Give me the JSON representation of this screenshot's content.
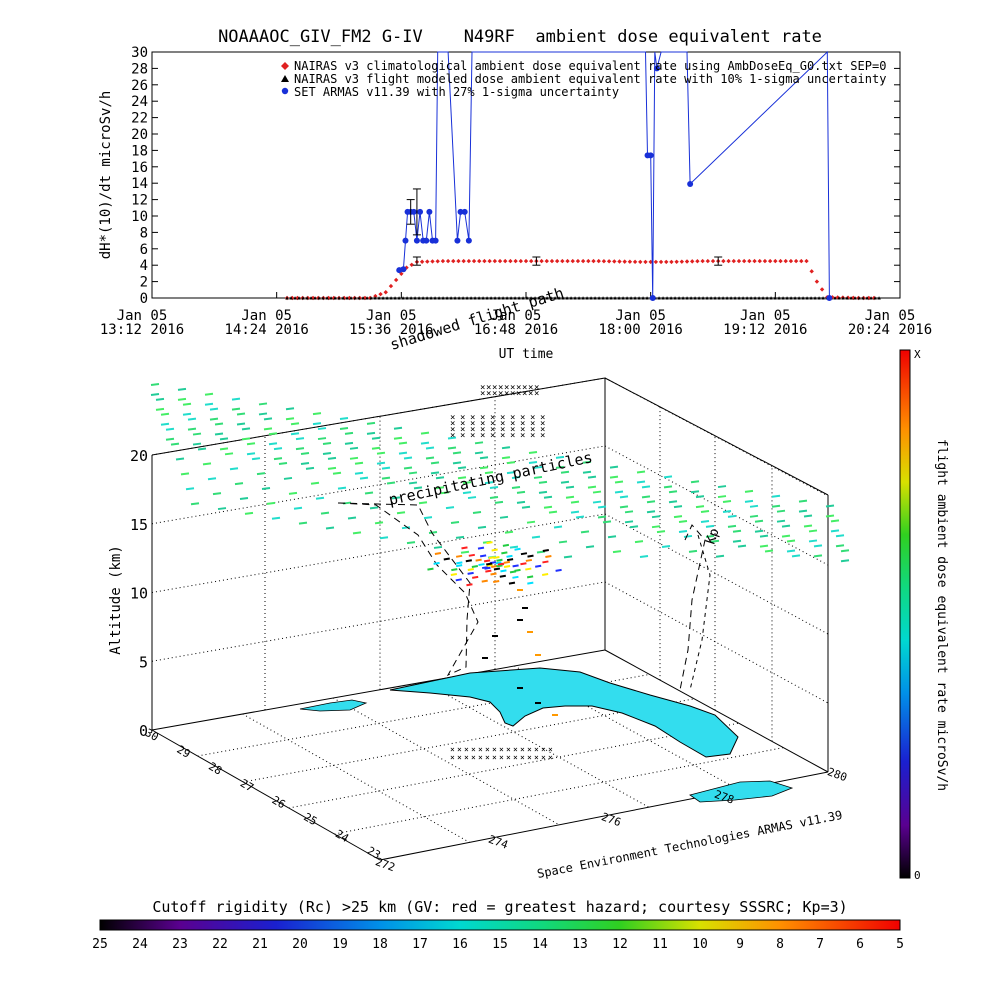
{
  "chart_data": [
    {
      "type": "line",
      "title": "NOAAAOC_GIV_FM2 G-IV    N49RF  ambient dose equivalent rate",
      "ylabel": "dH*(10)/dt microSv/h",
      "xlabel": "UT time",
      "ylim": [
        0,
        30
      ],
      "yticks": [
        "0",
        "2",
        "4",
        "6",
        "8",
        "10",
        "12",
        "14",
        "16",
        "18",
        "20",
        "22",
        "24",
        "26",
        "28",
        "30"
      ],
      "xlim_hours": [
        13.2,
        20.4
      ],
      "xticks": [
        {
          "h": 13.2,
          "d": "Jan 05",
          "t": "13:12 2016"
        },
        {
          "h": 14.4,
          "d": "Jan 05",
          "t": "14:24 2016"
        },
        {
          "h": 15.6,
          "d": "Jan 05",
          "t": "15:36 2016"
        },
        {
          "h": 16.8,
          "d": "Jan 05",
          "t": "16:48 2016"
        },
        {
          "h": 18.0,
          "d": "Jan 05",
          "t": "18:00 2016"
        },
        {
          "h": 19.2,
          "d": "Jan 05",
          "t": "19:12 2016"
        },
        {
          "h": 20.4,
          "d": "Jan 05",
          "t": "20:24 2016"
        }
      ],
      "legend_position": "top-right",
      "series": [
        {
          "name": "NAIRAS v3 climatological ambient dose equivalent rate using AmbDoseEq_G0.txt SEP=0",
          "color": "#e02020",
          "marker": "diamond",
          "points": [
            [
              14.5,
              0
            ],
            [
              15.0,
              0
            ],
            [
              15.3,
              0
            ],
            [
              15.45,
              0.7
            ],
            [
              15.55,
              2.2
            ],
            [
              15.65,
              3.7
            ],
            [
              15.75,
              4.4
            ],
            [
              16.0,
              4.5
            ],
            [
              16.5,
              4.5
            ],
            [
              17.0,
              4.5
            ],
            [
              17.5,
              4.5
            ],
            [
              17.9,
              4.4
            ],
            [
              18.2,
              4.4
            ],
            [
              18.5,
              4.5
            ],
            [
              18.9,
              4.5
            ],
            [
              19.3,
              4.5
            ],
            [
              19.5,
              4.5
            ],
            [
              19.6,
              2.0
            ],
            [
              19.7,
              0.1
            ],
            [
              20.0,
              0
            ],
            [
              20.2,
              0
            ]
          ]
        },
        {
          "name": "NAIRAS v3 flight modeled dose ambient equivalent rate with 10% 1-sigma uncertainty",
          "color": "#000000",
          "marker": "triangle",
          "points": [
            [
              14.5,
              0
            ],
            [
              16.0,
              0
            ],
            [
              17.5,
              0
            ],
            [
              19.0,
              0
            ],
            [
              20.2,
              0
            ]
          ],
          "errorbars": [
            [
              15.75,
              4.5,
              0.5
            ],
            [
              16.9,
              4.5,
              0.5
            ],
            [
              18.65,
              4.5,
              0.5
            ]
          ]
        },
        {
          "name": "SET ARMAS v11.39 with 27% 1-sigma uncertainty",
          "color": "#1830d8",
          "marker": "circle",
          "points": [
            [
              15.58,
              3.4
            ],
            [
              15.62,
              3.5
            ],
            [
              15.64,
              7
            ],
            [
              15.66,
              10.5
            ],
            [
              15.69,
              10.5
            ],
            [
              15.72,
              10.5
            ],
            [
              15.75,
              7
            ],
            [
              15.78,
              10.5
            ],
            [
              15.81,
              7
            ],
            [
              15.84,
              7
            ],
            [
              15.87,
              10.5
            ],
            [
              15.9,
              7
            ],
            [
              15.93,
              7
            ],
            [
              15.95,
              30
            ],
            [
              16.05,
              30
            ],
            [
              16.14,
              7
            ],
            [
              16.17,
              10.5
            ],
            [
              16.21,
              10.5
            ],
            [
              16.25,
              7
            ],
            [
              16.28,
              30
            ],
            [
              17.95,
              30
            ],
            [
              17.97,
              17.4
            ],
            [
              18.0,
              17.4
            ],
            [
              18.02,
              0
            ],
            [
              18.04,
              30
            ],
            [
              18.06,
              28
            ],
            [
              18.1,
              30
            ],
            [
              18.35,
              30
            ],
            [
              18.38,
              13.9
            ],
            [
              19.7,
              30
            ],
            [
              19.72,
              0
            ]
          ],
          "errorbars": [
            [
              15.75,
              10.5,
              2.8
            ],
            [
              15.69,
              10.5,
              1.5
            ]
          ]
        }
      ]
    },
    {
      "type": "scatter",
      "title": "",
      "subtitle": "",
      "ylabel": "Altitude (km)",
      "zticks": [
        "0",
        "5",
        "10",
        "15",
        "20"
      ],
      "lat_ticks": [
        "23",
        "24",
        "25",
        "26",
        "27",
        "28",
        "29",
        "30"
      ],
      "lon_ticks": [
        "272",
        "274",
        "276",
        "278",
        "280"
      ],
      "annotations": [
        "shadowed flight path",
        "precipitating particles",
        "Kp"
      ],
      "credit": "Space Environment Technologies ARMAS v11.39",
      "colorbar_title": "flight ambient dose equivalent rate microSv/h",
      "colorbar_top": "X",
      "colorbar_bottom": "0"
    },
    {
      "type": "heatmap",
      "title": "Cutoff rigidity (Rc) >25 km (GV: red = greatest hazard; courtesy SSSRC; Kp=3)",
      "ticks": [
        "25",
        "24",
        "23",
        "22",
        "21",
        "20",
        "19",
        "18",
        "17",
        "16",
        "15",
        "14",
        "13",
        "12",
        "11",
        "10",
        "9",
        "8",
        "7",
        "6",
        "5"
      ]
    }
  ]
}
